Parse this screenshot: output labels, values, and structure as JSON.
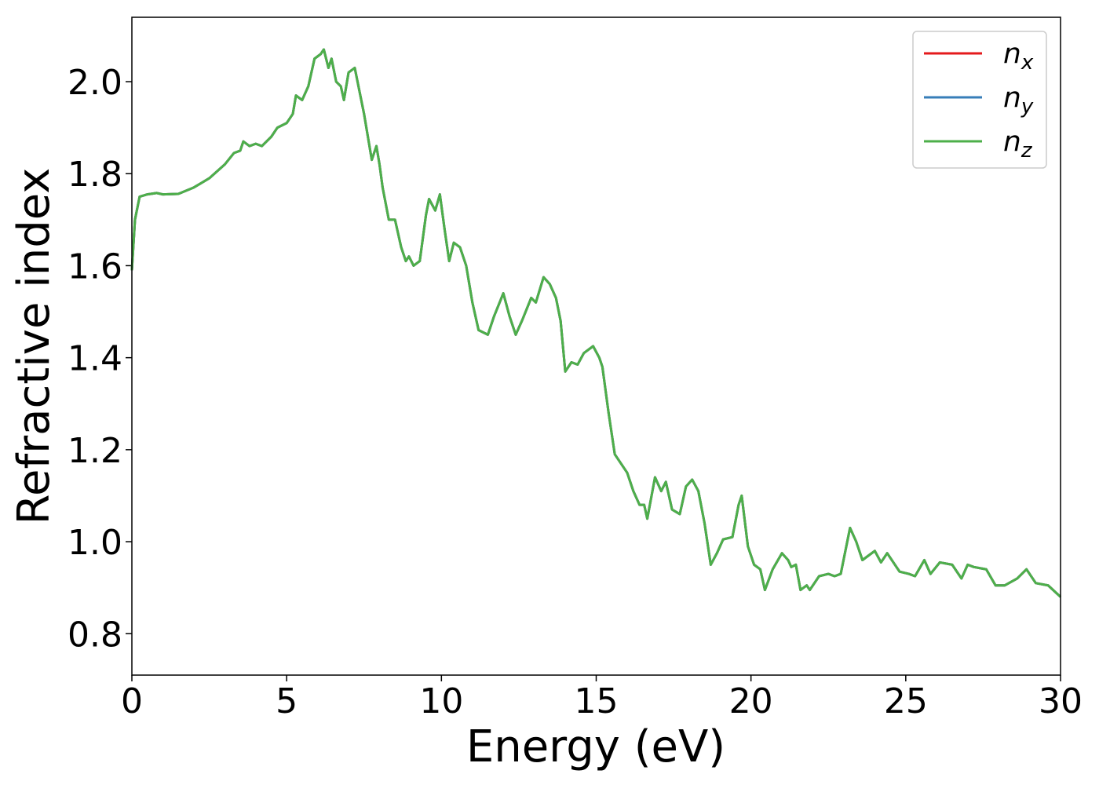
{
  "chart_data": {
    "type": "line",
    "xlabel": "Energy (eV)",
    "ylabel": "Refractive index",
    "xlim": [
      0,
      30
    ],
    "ylim": [
      0.71,
      2.14
    ],
    "xticks": [
      0,
      5,
      10,
      15,
      20,
      25,
      30
    ],
    "yticks": [
      0.8,
      {
        "value": 1.0,
        "label": "1.0"
      },
      1.2,
      1.4,
      1.6,
      1.8,
      {
        "value": 2.0,
        "label": "2.0"
      }
    ],
    "legend": "upper right",
    "x": [
      0,
      0.1,
      0.25,
      0.5,
      0.8,
      1.0,
      1.5,
      2.0,
      2.5,
      3.0,
      3.3,
      3.5,
      3.6,
      3.8,
      4.0,
      4.2,
      4.5,
      4.7,
      5.0,
      5.2,
      5.3,
      5.5,
      5.7,
      5.9,
      6.1,
      6.2,
      6.35,
      6.45,
      6.6,
      6.75,
      6.85,
      7.0,
      7.2,
      7.35,
      7.5,
      7.6,
      7.75,
      7.9,
      8.0,
      8.1,
      8.3,
      8.5,
      8.7,
      8.85,
      8.95,
      9.1,
      9.3,
      9.5,
      9.6,
      9.8,
      9.95,
      10.1,
      10.25,
      10.4,
      10.6,
      10.8,
      11.0,
      11.2,
      11.5,
      11.7,
      12.0,
      12.2,
      12.4,
      12.6,
      12.9,
      13.05,
      13.3,
      13.5,
      13.7,
      13.85,
      14.0,
      14.2,
      14.4,
      14.6,
      14.9,
      15.1,
      15.2,
      15.4,
      15.6,
      15.8,
      16.0,
      16.2,
      16.4,
      16.55,
      16.65,
      16.9,
      17.1,
      17.25,
      17.45,
      17.7,
      17.9,
      18.1,
      18.3,
      18.5,
      18.7,
      18.9,
      19.1,
      19.4,
      19.6,
      19.7,
      19.9,
      20.1,
      20.3,
      20.45,
      20.7,
      21.0,
      21.2,
      21.3,
      21.45,
      21.6,
      21.8,
      21.9,
      22.2,
      22.5,
      22.7,
      22.9,
      23.2,
      23.4,
      23.6,
      23.8,
      24.0,
      24.2,
      24.4,
      24.6,
      24.8,
      25.1,
      25.3,
      25.6,
      25.8,
      26.1,
      26.5,
      26.8,
      27.0,
      27.2,
      27.6,
      27.9,
      28.2,
      28.6,
      28.9,
      29.2,
      29.6,
      30.0
    ],
    "series": [
      {
        "name": "nx",
        "color": "#e41a1c",
        "values": [
          1.59,
          1.7,
          1.75,
          1.755,
          1.758,
          1.755,
          1.756,
          1.77,
          1.79,
          1.82,
          1.845,
          1.85,
          1.87,
          1.86,
          1.865,
          1.86,
          1.88,
          1.9,
          1.91,
          1.93,
          1.97,
          1.96,
          1.99,
          2.05,
          2.06,
          2.07,
          2.03,
          2.05,
          2.0,
          1.99,
          1.96,
          2.02,
          2.03,
          1.98,
          1.93,
          1.89,
          1.83,
          1.86,
          1.82,
          1.77,
          1.7,
          1.7,
          1.64,
          1.61,
          1.62,
          1.6,
          1.61,
          1.71,
          1.745,
          1.72,
          1.755,
          1.68,
          1.61,
          1.65,
          1.64,
          1.6,
          1.52,
          1.46,
          1.45,
          1.49,
          1.54,
          1.49,
          1.45,
          1.48,
          1.53,
          1.52,
          1.575,
          1.56,
          1.53,
          1.48,
          1.37,
          1.39,
          1.385,
          1.41,
          1.425,
          1.4,
          1.38,
          1.28,
          1.19,
          1.17,
          1.15,
          1.11,
          1.08,
          1.08,
          1.05,
          1.14,
          1.11,
          1.13,
          1.07,
          1.06,
          1.12,
          1.135,
          1.11,
          1.04,
          0.95,
          0.975,
          1.005,
          1.01,
          1.08,
          1.1,
          0.99,
          0.95,
          0.94,
          0.895,
          0.94,
          0.975,
          0.96,
          0.945,
          0.95,
          0.895,
          0.905,
          0.895,
          0.925,
          0.93,
          0.925,
          0.93,
          1.03,
          1.0,
          0.96,
          0.97,
          0.98,
          0.955,
          0.975,
          0.955,
          0.935,
          0.93,
          0.925,
          0.96,
          0.93,
          0.955,
          0.95,
          0.92,
          0.95,
          0.945,
          0.94,
          0.905,
          0.905,
          0.92,
          0.94,
          0.91,
          0.905,
          0.88
        ]
      },
      {
        "name": "ny",
        "color": "#377eb8",
        "values": [
          1.59,
          1.7,
          1.75,
          1.755,
          1.758,
          1.755,
          1.756,
          1.77,
          1.79,
          1.82,
          1.845,
          1.85,
          1.87,
          1.86,
          1.865,
          1.86,
          1.88,
          1.9,
          1.91,
          1.93,
          1.97,
          1.96,
          1.99,
          2.05,
          2.06,
          2.07,
          2.03,
          2.05,
          2.0,
          1.99,
          1.96,
          2.02,
          2.03,
          1.98,
          1.93,
          1.89,
          1.83,
          1.86,
          1.82,
          1.77,
          1.7,
          1.7,
          1.64,
          1.61,
          1.62,
          1.6,
          1.61,
          1.71,
          1.745,
          1.72,
          1.755,
          1.68,
          1.61,
          1.65,
          1.64,
          1.6,
          1.52,
          1.46,
          1.45,
          1.49,
          1.54,
          1.49,
          1.45,
          1.48,
          1.53,
          1.52,
          1.575,
          1.56,
          1.53,
          1.48,
          1.37,
          1.39,
          1.385,
          1.41,
          1.425,
          1.4,
          1.38,
          1.28,
          1.19,
          1.17,
          1.15,
          1.11,
          1.08,
          1.08,
          1.05,
          1.14,
          1.11,
          1.13,
          1.07,
          1.06,
          1.12,
          1.135,
          1.11,
          1.04,
          0.95,
          0.975,
          1.005,
          1.01,
          1.08,
          1.1,
          0.99,
          0.95,
          0.94,
          0.895,
          0.94,
          0.975,
          0.96,
          0.945,
          0.95,
          0.895,
          0.905,
          0.895,
          0.925,
          0.93,
          0.925,
          0.93,
          1.03,
          1.0,
          0.96,
          0.97,
          0.98,
          0.955,
          0.975,
          0.955,
          0.935,
          0.93,
          0.925,
          0.96,
          0.93,
          0.955,
          0.95,
          0.92,
          0.95,
          0.945,
          0.94,
          0.905,
          0.905,
          0.92,
          0.94,
          0.91,
          0.905,
          0.88
        ]
      },
      {
        "name": "nz",
        "color": "#4daf4a",
        "values": [
          1.59,
          1.7,
          1.75,
          1.755,
          1.758,
          1.755,
          1.756,
          1.77,
          1.79,
          1.82,
          1.845,
          1.85,
          1.87,
          1.86,
          1.865,
          1.86,
          1.88,
          1.9,
          1.91,
          1.93,
          1.97,
          1.96,
          1.99,
          2.05,
          2.06,
          2.07,
          2.03,
          2.05,
          2.0,
          1.99,
          1.96,
          2.02,
          2.03,
          1.98,
          1.93,
          1.89,
          1.83,
          1.86,
          1.82,
          1.77,
          1.7,
          1.7,
          1.64,
          1.61,
          1.62,
          1.6,
          1.61,
          1.71,
          1.745,
          1.72,
          1.755,
          1.68,
          1.61,
          1.65,
          1.64,
          1.6,
          1.52,
          1.46,
          1.45,
          1.49,
          1.54,
          1.49,
          1.45,
          1.48,
          1.53,
          1.52,
          1.575,
          1.56,
          1.53,
          1.48,
          1.37,
          1.39,
          1.385,
          1.41,
          1.425,
          1.4,
          1.38,
          1.28,
          1.19,
          1.17,
          1.15,
          1.11,
          1.08,
          1.08,
          1.05,
          1.14,
          1.11,
          1.13,
          1.07,
          1.06,
          1.12,
          1.135,
          1.11,
          1.04,
          0.95,
          0.975,
          1.005,
          1.01,
          1.08,
          1.1,
          0.99,
          0.95,
          0.94,
          0.895,
          0.94,
          0.975,
          0.96,
          0.945,
          0.95,
          0.895,
          0.905,
          0.895,
          0.925,
          0.93,
          0.925,
          0.93,
          1.03,
          1.0,
          0.96,
          0.97,
          0.98,
          0.955,
          0.975,
          0.955,
          0.935,
          0.93,
          0.925,
          0.96,
          0.93,
          0.955,
          0.95,
          0.92,
          0.95,
          0.945,
          0.94,
          0.905,
          0.905,
          0.92,
          0.94,
          0.91,
          0.905,
          0.88
        ]
      }
    ]
  }
}
